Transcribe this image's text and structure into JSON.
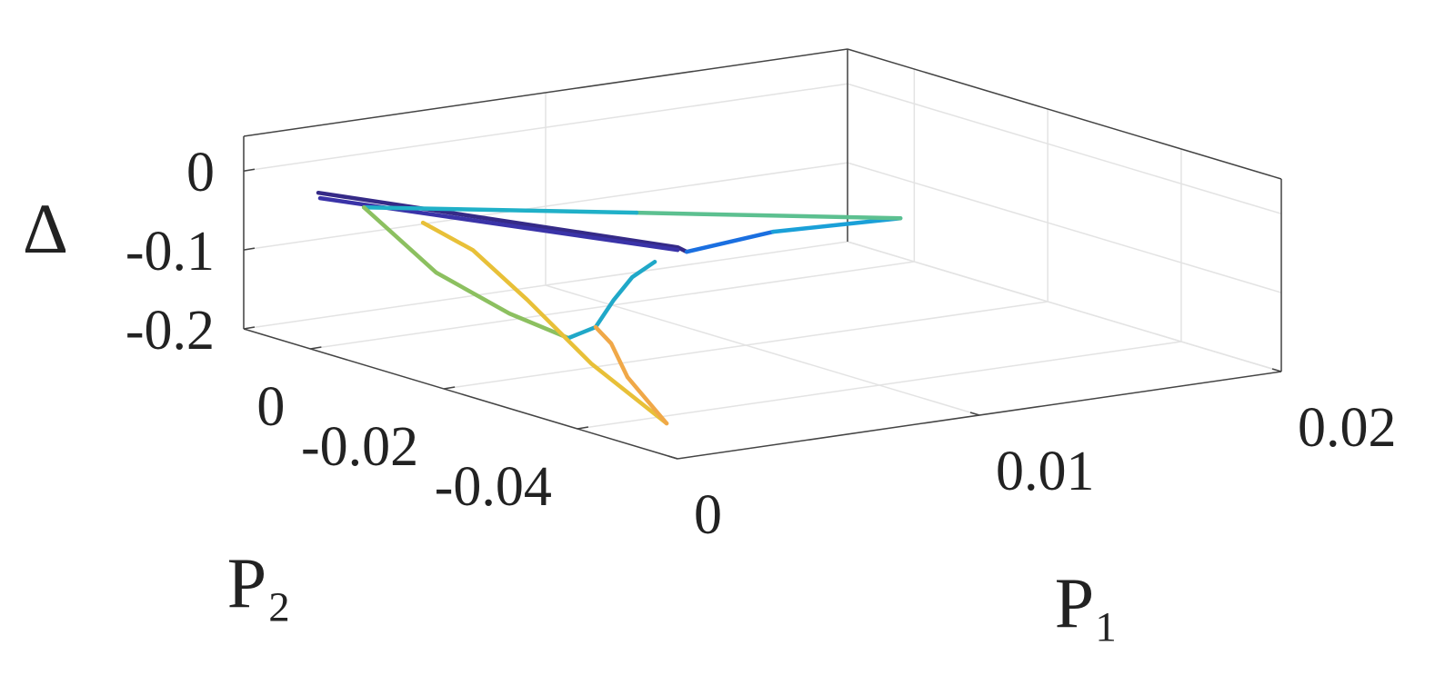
{
  "chart_data": {
    "type": "line3d",
    "xlabel": "P₁",
    "ylabel": "P₂",
    "zlabel": "Δ",
    "xlim": [
      0,
      0.02
    ],
    "ylim": [
      -0.055,
      0.01
    ],
    "zlim": [
      -0.2,
      0.044
    ],
    "xticks": [
      0,
      0.01,
      0.02
    ],
    "yticks": [
      0,
      -0.02,
      -0.04
    ],
    "zticks": [
      -0.2,
      -0.1,
      0
    ],
    "grid": true,
    "series": [
      {
        "color": "#352a87",
        "x": [
          0.00026,
          0.00774,
          0.00804
        ],
        "y": [
          0,
          -0.02,
          -0.02
        ],
        "z": [
          -0.0037,
          -0.0634,
          -0.0708
        ]
      },
      {
        "color": "#3a33a8",
        "x": [
          0.00032,
          0.00774
        ],
        "y": [
          0,
          -0.02
        ],
        "z": [
          -0.0109,
          -0.0669
        ]
      },
      {
        "color": "#1a6fe0",
        "x": [
          0.00804,
          0.0109
        ],
        "y": [
          -0.02,
          -0.02
        ],
        "z": [
          -0.0708,
          -0.0613
        ]
      },
      {
        "color": "#1aa0d8",
        "x": [
          0.0109,
          0.01512
        ],
        "y": [
          -0.02,
          -0.02
        ],
        "z": [
          -0.0613,
          -0.0674
        ]
      },
      {
        "color": "#5cc090",
        "x": [
          0.01512,
          0.00859
        ],
        "y": [
          -0.02,
          -0.01
        ],
        "z": [
          -0.0674,
          -0.0497
        ]
      },
      {
        "color": "#20b0c8",
        "x": [
          0.00859,
          0.00177
        ],
        "y": [
          -0.01,
          0
        ],
        "z": [
          -0.0497,
          -0.0305
        ]
      },
      {
        "color": "#8cc060",
        "x": [
          0.00177,
          0.00196,
          0.00217,
          0.00302
        ],
        "y": [
          0,
          -0.01,
          -0.02,
          -0.025
        ],
        "z": [
          -0.0305,
          -0.089,
          -0.1166,
          -0.1397
        ]
      },
      {
        "color": "#20a8c8",
        "x": [
          0.00302,
          0.00392,
          0.00452,
          0.00513,
          0.00588
        ],
        "y": [
          -0.025,
          -0.025,
          -0.025,
          -0.025,
          -0.025
        ],
        "z": [
          -0.1397,
          -0.1308,
          -0.0997,
          -0.0743,
          -0.0589
        ]
      },
      {
        "color": "#e8c038",
        "x": [
          0.00262,
          0.00206,
          0.00166,
          0.00156,
          0.00185
        ],
        "y": [
          -0.005,
          -0.015,
          -0.025,
          -0.035,
          -0.045
        ],
        "z": [
          -0.042,
          -0.0482,
          -0.0839,
          -0.1385,
          -0.1907
        ]
      },
      {
        "color": "#f0a848",
        "x": [
          0.00185,
          0.0021,
          0.00333,
          0.00392
        ],
        "y": [
          -0.045,
          -0.038,
          -0.03,
          -0.025
        ],
        "z": [
          -0.1907,
          -0.1511,
          -0.1356,
          -0.1308
        ]
      }
    ]
  }
}
